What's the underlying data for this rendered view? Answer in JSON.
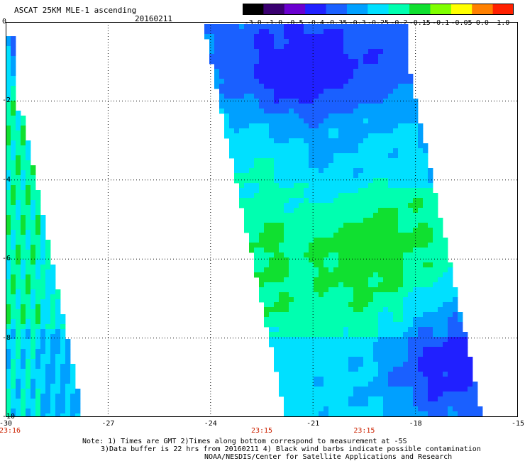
{
  "header": {
    "title": "ASCAT 25KM MLE-1 ascending",
    "date": "20160211"
  },
  "colorbar": {
    "labels": [
      "-3.0",
      "-1.0",
      "-0.5",
      "-0.4",
      "-0.35",
      "-0.3",
      "-0.25",
      "-0.2",
      "-0.15",
      "-0.1",
      "-0.05",
      "0.0",
      "1.0"
    ],
    "colors": [
      "#000000",
      "#3a0070",
      "#6a00d0",
      "#2020ff",
      "#1a60ff",
      "#00a0ff",
      "#00e0ff",
      "#00ffb0",
      "#10e030",
      "#80ff00",
      "#ffff00",
      "#ff8000",
      "#ff2000"
    ]
  },
  "map": {
    "lon_range": [
      -30,
      -15
    ],
    "lat_range": [
      -10,
      0
    ],
    "x_ticks": [
      "-30",
      "-27",
      "-24",
      "-21",
      "-18",
      "-15"
    ],
    "y_ticks": [
      "0",
      "-2",
      "-4",
      "-6",
      "-8",
      "-10"
    ],
    "grid": "dotted"
  },
  "times": [
    {
      "label": "23:16",
      "lon": -30
    },
    {
      "label": "23:15",
      "lon": -22.5
    },
    {
      "label": "23:15",
      "lon": -19.5
    }
  ],
  "notes": {
    "line1": "Note: 1) Times are GMT 2)Times along bottom correspond to measurement at -5S",
    "line2": "3)Data buffer is 22 hrs from 20160211 4) Black wind barbs indicate possible contamination",
    "line3": "NOAA/NESDIS/Center for Satellite Applications and Research"
  }
}
